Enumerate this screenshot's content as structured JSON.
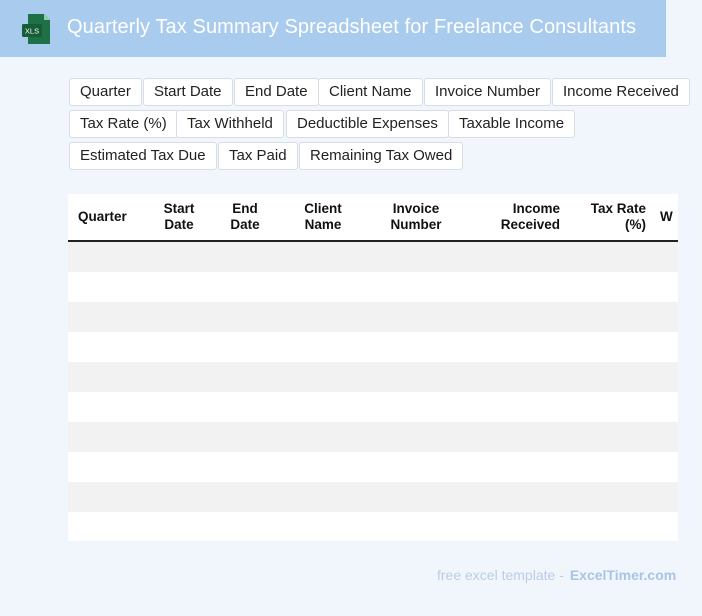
{
  "header": {
    "title": "Quarterly Tax Summary Spreadsheet for Freelance Consultants",
    "icon_label": "XLS",
    "icon_color": "#1e7145"
  },
  "columns_chips": [
    "Quarter",
    "Start Date",
    "End Date",
    "Client Name",
    "Invoice Number",
    "Income Received",
    "Tax Rate (%)",
    "Tax Withheld",
    "Deductible Expenses",
    "Taxable Income",
    "Estimated Tax Due",
    "Tax Paid",
    "Remaining Tax Owed"
  ],
  "table": {
    "headers": [
      "Quarter",
      "Start Date",
      "End Date",
      "Client Name",
      "Invoice Number",
      "Income Received",
      "Tax Rate (%)",
      "W"
    ],
    "rows": 10
  },
  "footer": {
    "prefix": "free excel template -",
    "brand": "ExcelTimer.com"
  },
  "colors": {
    "header_bg": "#a9cbee",
    "page_bg": "#f1f6fd",
    "row_stripe": "#f2f2f2"
  }
}
